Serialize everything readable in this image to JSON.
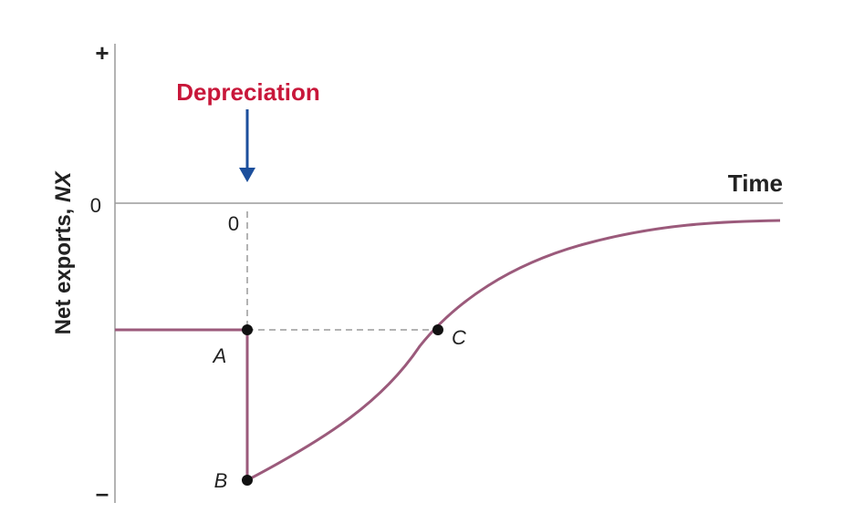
{
  "diagram": {
    "y_axis_label_prefix": "Net exports, ",
    "y_axis_label_symbol": "NX",
    "y_plus_label": "+",
    "y_zero_label": "0",
    "y_minus_label": "–",
    "x_axis_label": "Time",
    "x_zero_label": "0",
    "event_label": "Depreciation",
    "point_labels": {
      "a": "A",
      "b": "B",
      "c": "C"
    },
    "colors": {
      "axis": "#9a9a9a",
      "curve": "#9b5a7b",
      "event_text": "#c8173a",
      "arrow": "#1c4f9c",
      "dashed": "#9a9a9a",
      "dot": "#111111"
    }
  }
}
